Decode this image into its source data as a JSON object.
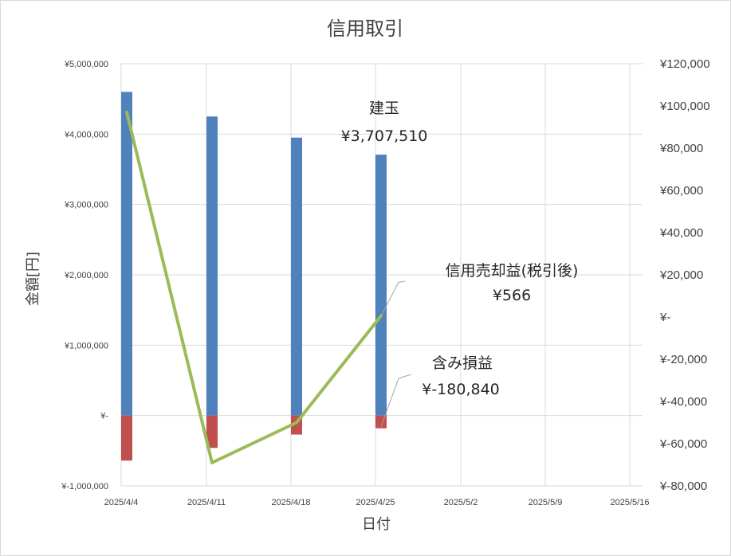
{
  "chart_data": {
    "type": "bar",
    "title": "信用取引",
    "xlabel": "日付",
    "ylabel": "金額[円]",
    "x_ticks": [
      "2025/4/4",
      "2025/4/11",
      "2025/4/18",
      "2025/4/25",
      "2025/5/2",
      "2025/5/9",
      "2025/5/16"
    ],
    "left_axis": {
      "ylim": [
        -1000000,
        5000000
      ],
      "ticks": [
        {
          "value": 5000000,
          "label": "¥5,000,000"
        },
        {
          "value": 4000000,
          "label": "¥4,000,000"
        },
        {
          "value": 3000000,
          "label": "¥3,000,000"
        },
        {
          "value": 2000000,
          "label": "¥2,000,000"
        },
        {
          "value": 1000000,
          "label": "¥1,000,000"
        },
        {
          "value": 0,
          "label": "¥-"
        },
        {
          "value": -1000000,
          "label": "¥-1,000,000"
        }
      ]
    },
    "right_axis": {
      "ylim": [
        -80000,
        120000
      ],
      "ticks": [
        {
          "value": 120000,
          "label": "¥120,000"
        },
        {
          "value": 100000,
          "label": "¥100,000"
        },
        {
          "value": 80000,
          "label": "¥80,000"
        },
        {
          "value": 60000,
          "label": "¥60,000"
        },
        {
          "value": 40000,
          "label": "¥40,000"
        },
        {
          "value": 20000,
          "label": "¥20,000"
        },
        {
          "value": 0,
          "label": "¥-"
        },
        {
          "value": -20000,
          "label": "¥-20,000"
        },
        {
          "value": -40000,
          "label": "¥-40,000"
        },
        {
          "value": -60000,
          "label": "¥-60,000"
        },
        {
          "value": -80000,
          "label": "¥-80,000"
        }
      ]
    },
    "series": [
      {
        "name": "建玉",
        "kind": "bar",
        "axis": "left",
        "color": "#4f81bd",
        "x": [
          "2025/4/4",
          "2025/4/11",
          "2025/4/18",
          "2025/4/25"
        ],
        "values": [
          4600000,
          4250000,
          3950000,
          3707510
        ]
      },
      {
        "name": "含み損益",
        "kind": "bar",
        "axis": "left",
        "color": "#c0504d",
        "x": [
          "2025/4/4",
          "2025/4/11",
          "2025/4/18",
          "2025/4/25"
        ],
        "values": [
          -640000,
          -460000,
          -270000,
          -180840
        ]
      },
      {
        "name": "信用売却益(税引後)",
        "kind": "line",
        "axis": "right",
        "color": "#9bbb59",
        "x": [
          "2025/4/4",
          "2025/4/11",
          "2025/4/18",
          "2025/4/25"
        ],
        "values": [
          97000,
          -69000,
          -50000,
          566
        ]
      }
    ],
    "annotations": [
      {
        "series": "建玉",
        "name": "建玉",
        "value": "¥3,707,510"
      },
      {
        "series": "信用売却益(税引後)",
        "name": "信用売却益(税引後)",
        "value": "¥566"
      },
      {
        "series": "含み損益",
        "name": "含み損益",
        "value": "¥-180,840"
      }
    ],
    "grid": true,
    "legend": "none"
  }
}
